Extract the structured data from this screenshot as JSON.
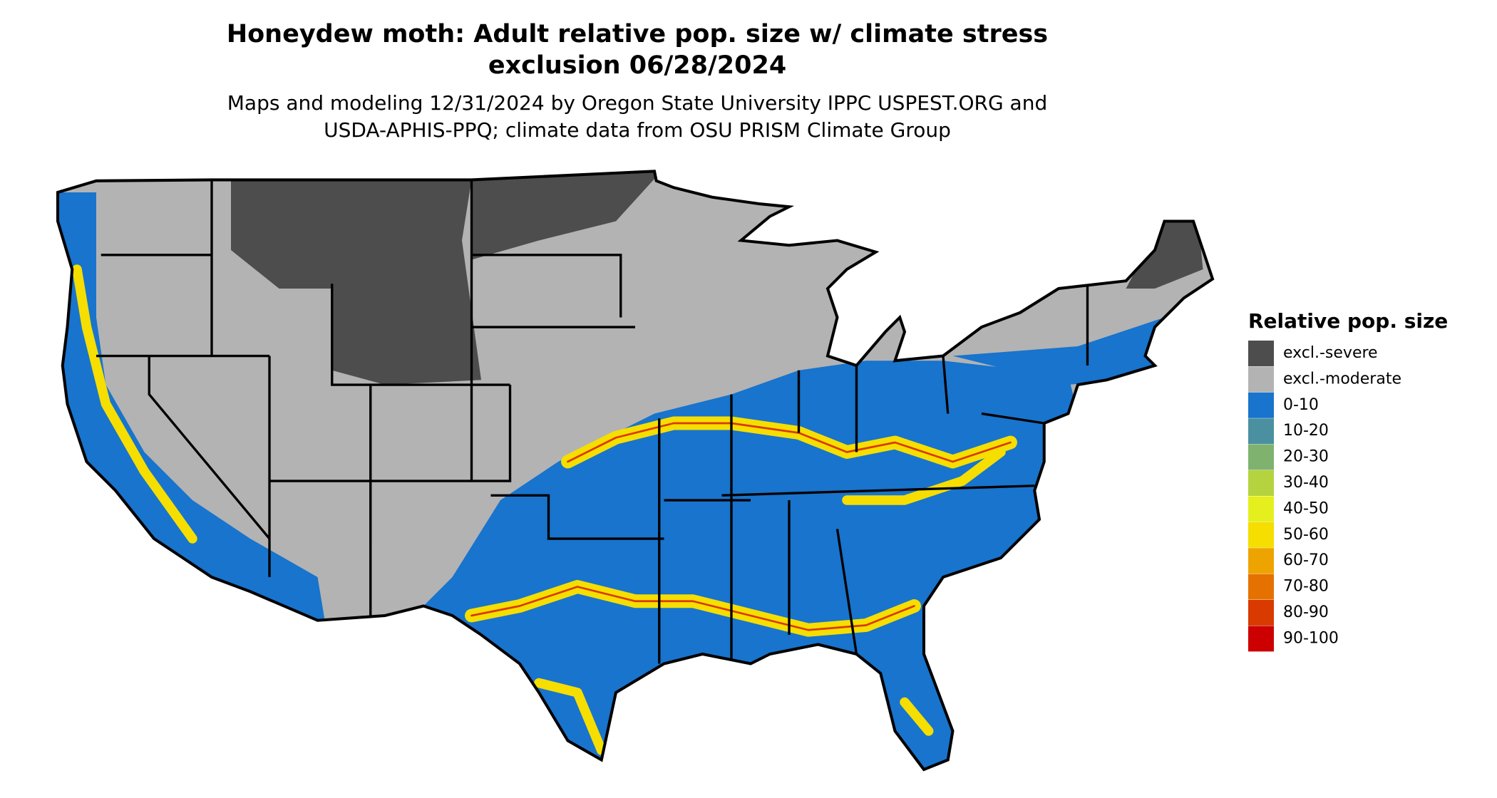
{
  "title_lines": [
    "Honeydew moth: Adult relative pop. size w/ climate stress",
    "exclusion 06/28/2024"
  ],
  "subtitle_lines": [
    "Maps and modeling 12/31/2024 by Oregon State University IPPC USPEST.ORG and",
    "USDA-APHIS-PPQ; climate data from OSU PRISM Climate Group"
  ],
  "legend": {
    "title": "Relative pop. size",
    "items": [
      {
        "label": "excl.-severe",
        "color": "#4d4d4d"
      },
      {
        "label": "excl.-moderate",
        "color": "#b3b3b3"
      },
      {
        "label": "0-10",
        "color": "#1874cd"
      },
      {
        "label": "10-20",
        "color": "#4a90a0"
      },
      {
        "label": "20-30",
        "color": "#7fb26f"
      },
      {
        "label": "30-40",
        "color": "#b5d33f"
      },
      {
        "label": "40-50",
        "color": "#e5ef1e"
      },
      {
        "label": "50-60",
        "color": "#f5de00"
      },
      {
        "label": "60-70",
        "color": "#eea400"
      },
      {
        "label": "70-80",
        "color": "#e57200"
      },
      {
        "label": "80-90",
        "color": "#d93a00"
      },
      {
        "label": "90-100",
        "color": "#cc0000"
      }
    ]
  }
}
